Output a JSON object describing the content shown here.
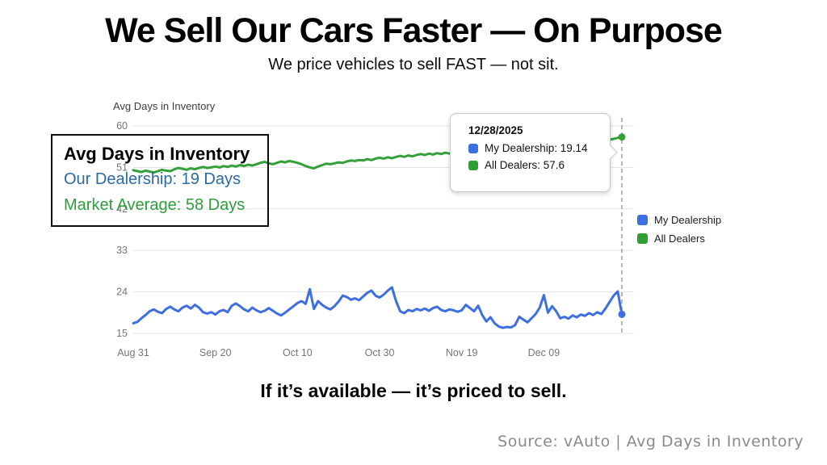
{
  "slide": {
    "title": "We Sell Our Cars Faster — On Purpose",
    "subtitle": "We price vehicles to sell FAST — not sit.",
    "tagline": "If it’s available — it’s priced to sell.",
    "source": "Source: vAuto | Avg Days in Inventory"
  },
  "annotation": {
    "heading": "Avg Days in Inventory",
    "line1": "Our Dealership: 19 Days",
    "line2": "Market Average: 58 Days",
    "line1_color": "#2a6aa5",
    "line2_color": "#2f9e3c"
  },
  "tooltip": {
    "date": "12/28/2025",
    "rows": [
      {
        "label": "My Dealership: 19.14",
        "color": "#3d6fe0"
      },
      {
        "label": "All Dealers: 57.6",
        "color": "#2f9e33"
      }
    ]
  },
  "legend": {
    "items": [
      {
        "label": "My Dealership",
        "color": "#3d6fe0"
      },
      {
        "label": "All Dealers",
        "color": "#2f9e33"
      }
    ]
  },
  "chart_data": {
    "type": "line",
    "title": "Avg Days in Inventory",
    "xlabel": "",
    "ylabel": "Avg Days in Inventory",
    "ylim": [
      15,
      60
    ],
    "grid": true,
    "legend_position": "right",
    "y_ticks": [
      60,
      51,
      42,
      33,
      24,
      15
    ],
    "x_tick_labels": [
      "Aug 31",
      "Sep 20",
      "Oct 10",
      "Oct 30",
      "Nov 19",
      "Dec 09"
    ],
    "x_tick_indices": [
      0,
      20,
      40,
      60,
      80,
      100
    ],
    "x_start_date": "Aug 31",
    "cursor_date": "12/28/2025",
    "grid_color": "#e3e3e3",
    "tick_color": "#757575",
    "cursor_line_color": "#9e9e9e",
    "series": [
      {
        "name": "My Dealership",
        "color": "#3d6fe0",
        "end_value": 19.14,
        "values": [
          17.2,
          17.5,
          18.3,
          19.0,
          19.8,
          20.2,
          19.7,
          19.4,
          20.3,
          20.8,
          20.2,
          19.8,
          20.6,
          21.0,
          20.4,
          21.2,
          20.6,
          19.6,
          19.3,
          19.6,
          19.1,
          19.8,
          20.1,
          19.6,
          21.0,
          21.5,
          20.9,
          20.2,
          19.8,
          20.6,
          20.0,
          19.6,
          19.9,
          20.5,
          19.9,
          19.3,
          18.9,
          19.5,
          20.2,
          20.9,
          21.6,
          22.0,
          21.4,
          24.6,
          20.3,
          22.0,
          21.2,
          20.6,
          20.2,
          20.9,
          21.9,
          23.2,
          22.9,
          22.3,
          22.6,
          22.2,
          23.0,
          23.8,
          24.3,
          23.2,
          22.8,
          23.4,
          24.3,
          25.0,
          22.0,
          19.8,
          19.4,
          20.1,
          19.8,
          20.3,
          20.0,
          20.4,
          19.9,
          20.5,
          20.8,
          20.1,
          19.8,
          20.2,
          20.0,
          19.7,
          20.0,
          21.2,
          20.5,
          19.8,
          21.0,
          19.0,
          17.6,
          18.5,
          17.2,
          16.5,
          16.2,
          16.4,
          16.3,
          16.8,
          18.6,
          18.0,
          17.4,
          18.3,
          19.2,
          20.6,
          23.3,
          19.5,
          20.9,
          19.8,
          18.3,
          18.6,
          18.2,
          18.9,
          18.5,
          19.1,
          18.8,
          19.4,
          19.0,
          19.6,
          19.2,
          20.4,
          21.8,
          23.2,
          24.1,
          19.14
        ]
      },
      {
        "name": "All Dealers",
        "color": "#35a03a",
        "end_value": 57.6,
        "values": [
          50.4,
          50.2,
          50.0,
          50.3,
          50.1,
          49.9,
          50.2,
          50.5,
          50.3,
          50.2,
          50.6,
          50.9,
          50.7,
          50.5,
          50.8,
          50.6,
          50.9,
          51.1,
          50.9,
          51.0,
          51.2,
          51.0,
          51.3,
          51.1,
          51.4,
          51.2,
          51.5,
          51.3,
          51.6,
          51.4,
          51.7,
          52.0,
          52.2,
          51.9,
          51.7,
          52.0,
          52.3,
          52.1,
          52.4,
          52.2,
          52.0,
          51.7,
          51.3,
          51.0,
          50.8,
          51.2,
          51.5,
          51.8,
          51.7,
          51.9,
          52.1,
          52.0,
          52.3,
          52.5,
          52.4,
          52.6,
          52.5,
          52.8,
          52.6,
          52.9,
          53.1,
          52.9,
          53.2,
          53.0,
          53.3,
          53.5,
          53.3,
          53.6,
          53.4,
          53.7,
          53.9,
          53.7,
          54.0,
          53.8,
          54.1,
          53.9,
          54.2,
          54.0,
          54.3,
          54.5,
          54.3,
          54.6,
          54.4,
          54.7,
          54.9,
          54.7,
          55.0,
          54.8,
          55.1,
          55.3,
          55.1,
          55.4,
          55.2,
          55.5,
          55.7,
          55.5,
          55.8,
          55.6,
          55.9,
          56.1,
          55.9,
          56.2,
          56.0,
          56.3,
          56.5,
          56.3,
          56.6,
          56.4,
          56.7,
          56.9,
          56.7,
          57.0,
          56.8,
          57.1,
          56.9,
          57.2,
          57.0,
          57.2,
          57.4,
          57.6
        ]
      }
    ]
  }
}
